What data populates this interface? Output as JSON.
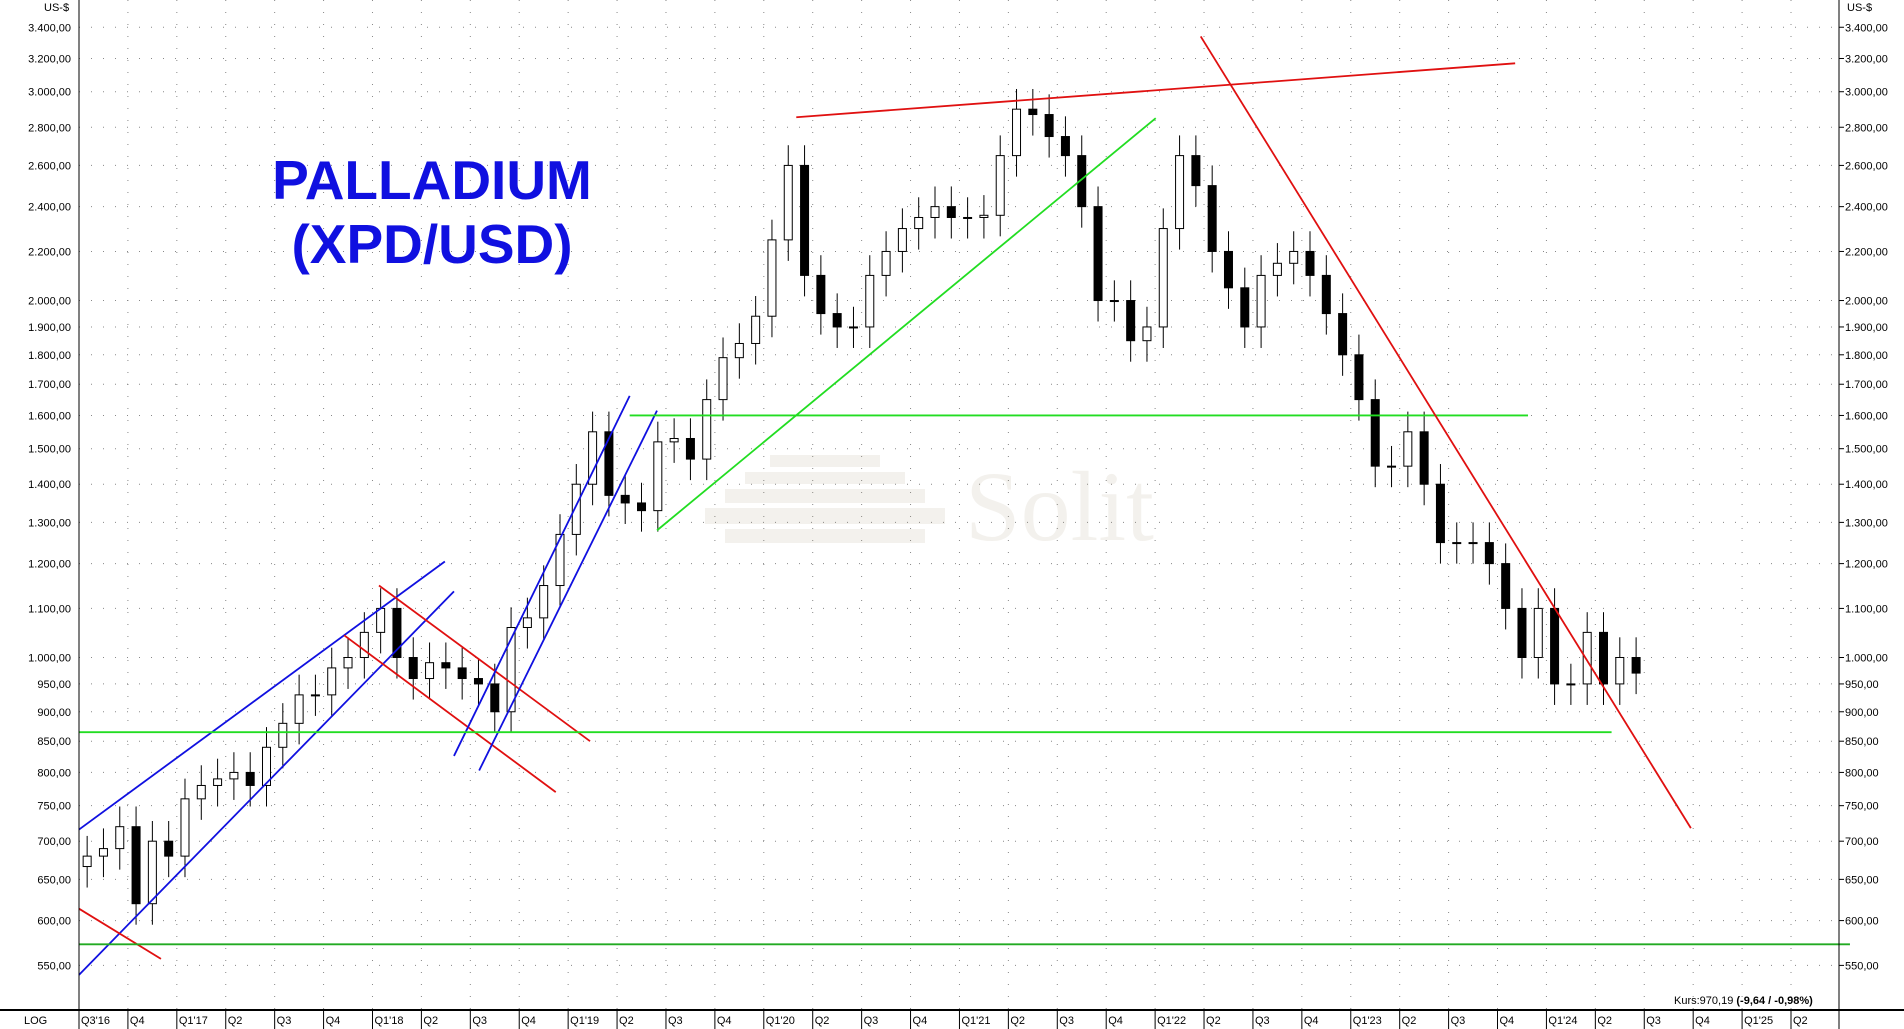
{
  "chart_data": {
    "type": "candlestick",
    "title": "PALLADIUM (XPD/USD)",
    "title_lines": [
      "PALLADIUM",
      "(XPD/USD)"
    ],
    "title_color": "#1010e0",
    "ylabel": "US-$",
    "scale_label": "LOG",
    "yscale": "log",
    "ylim": [
      530,
      3450
    ],
    "xlim": [
      "2016-07-01",
      "2025-07-20"
    ],
    "grid": true,
    "y_ticks": [
      3400,
      3200,
      3000,
      2800,
      2600,
      2400,
      2200,
      2000,
      1900,
      1800,
      1700,
      1600,
      1500,
      1400,
      1300,
      1200,
      1100,
      1000,
      950,
      900,
      850,
      800,
      750,
      700,
      650,
      600,
      550
    ],
    "y_tick_labels": [
      "3.400,00",
      "3.200,00",
      "3.000,00",
      "2.800,00",
      "2.600,00",
      "2.400,00",
      "2.200,00",
      "2.000,00",
      "1.900,00",
      "1.800,00",
      "1.700,00",
      "1.600,00",
      "1.500,00",
      "1.400,00",
      "1.300,00",
      "1.200,00",
      "1.100,00",
      "1.000,00",
      "950,00",
      "900,00",
      "850,00",
      "800,00",
      "750,00",
      "700,00",
      "650,00",
      "600,00",
      "550,00"
    ],
    "x_tick_labels": [
      "Q3'16",
      "Q4",
      "Q1'17",
      "Q2",
      "Q3",
      "Q4",
      "Q1'18",
      "Q2",
      "Q3",
      "Q4",
      "Q1'19",
      "Q2",
      "Q3",
      "Q4",
      "Q1'20",
      "Q2",
      "Q3",
      "Q4",
      "Q1'21",
      "Q2",
      "Q3",
      "Q4",
      "Q1'22",
      "Q2",
      "Q3",
      "Q4",
      "Q1'23",
      "Q2",
      "Q3",
      "Q4",
      "Q1'24",
      "Q2",
      "Q3",
      "Q4",
      "Q1'25",
      "Q2"
    ],
    "series": {
      "start": "2016-07",
      "interval": "month",
      "close": [
        680,
        690,
        720,
        620,
        700,
        680,
        760,
        780,
        790,
        800,
        780,
        840,
        880,
        930,
        930,
        980,
        1000,
        1050,
        1100,
        1000,
        960,
        990,
        980,
        960,
        950,
        900,
        1060,
        1080,
        1150,
        1270,
        1400,
        1550,
        1370,
        1350,
        1330,
        1520,
        1530,
        1470,
        1650,
        1790,
        1840,
        1940,
        2250,
        2600,
        2100,
        1950,
        1900,
        1900,
        2100,
        2200,
        2300,
        2350,
        2400,
        2350,
        2350,
        2360,
        2650,
        2900,
        2870,
        2750,
        2650,
        2400,
        2000,
        2000,
        1850,
        1900,
        2300,
        2650,
        2500,
        2200,
        2050,
        1900,
        2100,
        2150,
        2200,
        2100,
        1950,
        1800,
        1650,
        1450,
        1450,
        1550,
        1400,
        1250,
        1250,
        1250,
        1200,
        1100,
        1000,
        1100,
        950,
        950,
        1050,
        950,
        1000,
        970.19
      ]
    },
    "trendlines": [
      {
        "color": "#1010e0",
        "from": [
          "2016-07-01",
          716
        ],
        "to": [
          "2018-05-15",
          1205
        ]
      },
      {
        "color": "#1010e0",
        "from": [
          "2016-07-01",
          540
        ],
        "to": [
          "2018-06-01",
          1137
        ]
      },
      {
        "color": "#e01010",
        "from": [
          "2016-07-01",
          614
        ],
        "to": [
          "2016-12-01",
          557
        ]
      },
      {
        "color": "#e01010",
        "from": [
          "2018-01-12",
          1150
        ],
        "to": [
          "2019-02-10",
          850
        ]
      },
      {
        "color": "#e01010",
        "from": [
          "2017-11-08",
          1044
        ],
        "to": [
          "2018-12-08",
          770
        ]
      },
      {
        "color": "#1010e0",
        "from": [
          "2018-06-01",
          826
        ],
        "to": [
          "2019-04-25",
          1662
        ]
      },
      {
        "color": "#1010e0",
        "from": [
          "2018-07-18",
          803
        ],
        "to": [
          "2019-06-15",
          1615
        ]
      },
      {
        "color": "#22dd22",
        "from": [
          "2016-07-01",
          865
        ],
        "to": [
          "2024-05-01",
          865
        ]
      },
      {
        "color": "#22aa22",
        "from": [
          "2016-07-01",
          573
        ],
        "to": [
          "2025-07-20",
          573
        ]
      },
      {
        "color": "#22dd22",
        "from": [
          "2019-04-25",
          1600
        ],
        "to": [
          "2023-11-27",
          1600
        ]
      },
      {
        "color": "#22dd22",
        "from": [
          "2019-06-15",
          1280
        ],
        "to": [
          "2022-01-01",
          2850
        ]
      },
      {
        "color": "#e01010",
        "from": [
          "2020-03-01",
          2855
        ],
        "to": [
          "2023-11-03",
          3170
        ]
      },
      {
        "color": "#e01010",
        "from": [
          "2022-03-26",
          3340
        ],
        "to": [
          "2024-09-26",
          718
        ]
      }
    ],
    "watermark": "Solit",
    "quote": {
      "label": "Kurs:970,19",
      "change": "(-9,64 / -0,98%)"
    }
  }
}
